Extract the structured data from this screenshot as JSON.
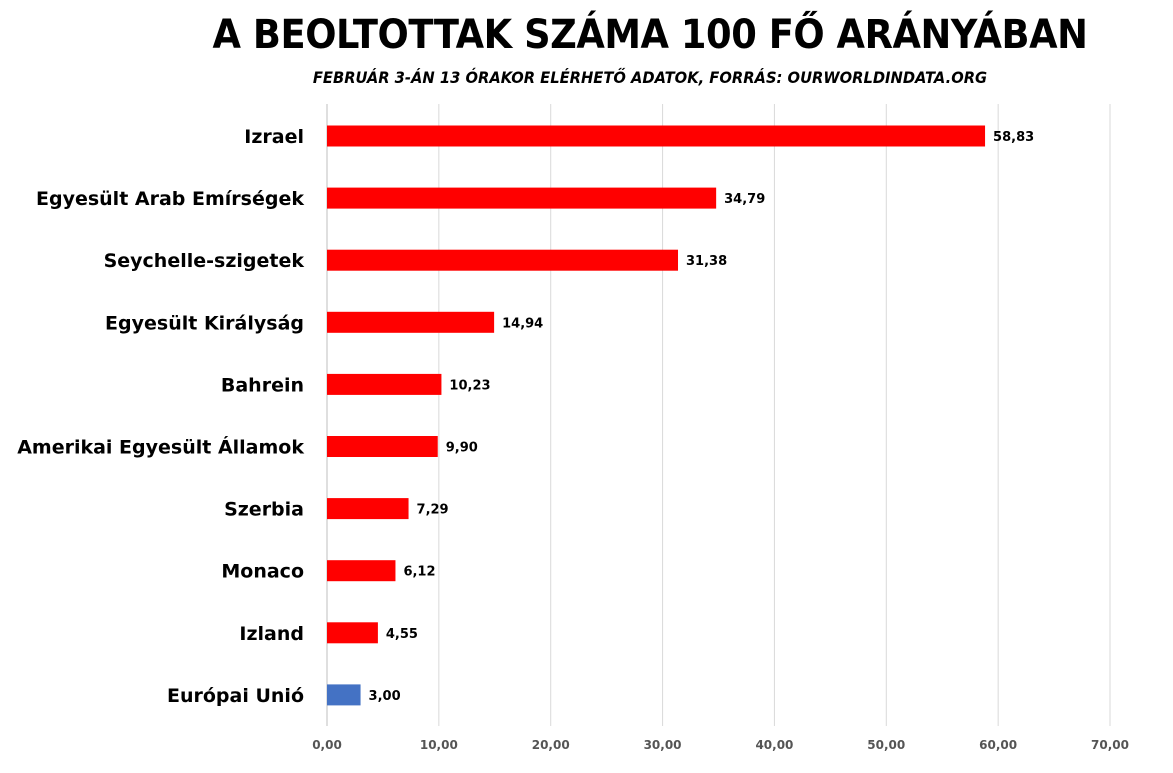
{
  "chart_data": {
    "type": "bar",
    "orientation": "horizontal",
    "title": "A BEOLTOTTAK SZÁMA 100 FŐ ARÁNYÁBAN",
    "subtitle": "FEBRUÁR 3-ÁN 13 ÓRAKOR ELÉRHETŐ ADATOK, FORRÁS: OURWORLDINDATA.ORG",
    "xlabel": "",
    "ylabel": "",
    "xlim": [
      0,
      70
    ],
    "grid": true,
    "categories": [
      "Izrael",
      "Egyesült Arab Emírségek",
      "Seychelle-szigetek",
      "Egyesült Királyság",
      "Bahrein",
      "Amerikai Egyesült Államok",
      "Szerbia",
      "Monaco",
      "Izland",
      "Európai Unió"
    ],
    "values": [
      58.83,
      34.79,
      31.38,
      14.94,
      10.23,
      9.9,
      7.29,
      6.12,
      4.55,
      3.0
    ],
    "value_labels": [
      "58,83",
      "34,79",
      "31,38",
      "14,94",
      "10,23",
      "9,90",
      "7,29",
      "6,12",
      "4,55",
      "3,00"
    ],
    "colors": [
      "#ff0000",
      "#ff0000",
      "#ff0000",
      "#ff0000",
      "#ff0000",
      "#ff0000",
      "#ff0000",
      "#ff0000",
      "#ff0000",
      "#4472c4"
    ],
    "ticks": [
      0,
      10,
      20,
      30,
      40,
      50,
      60,
      70
    ],
    "tick_labels": [
      "0,00",
      "10,00",
      "20,00",
      "30,00",
      "40,00",
      "50,00",
      "60,00",
      "70,00"
    ]
  }
}
